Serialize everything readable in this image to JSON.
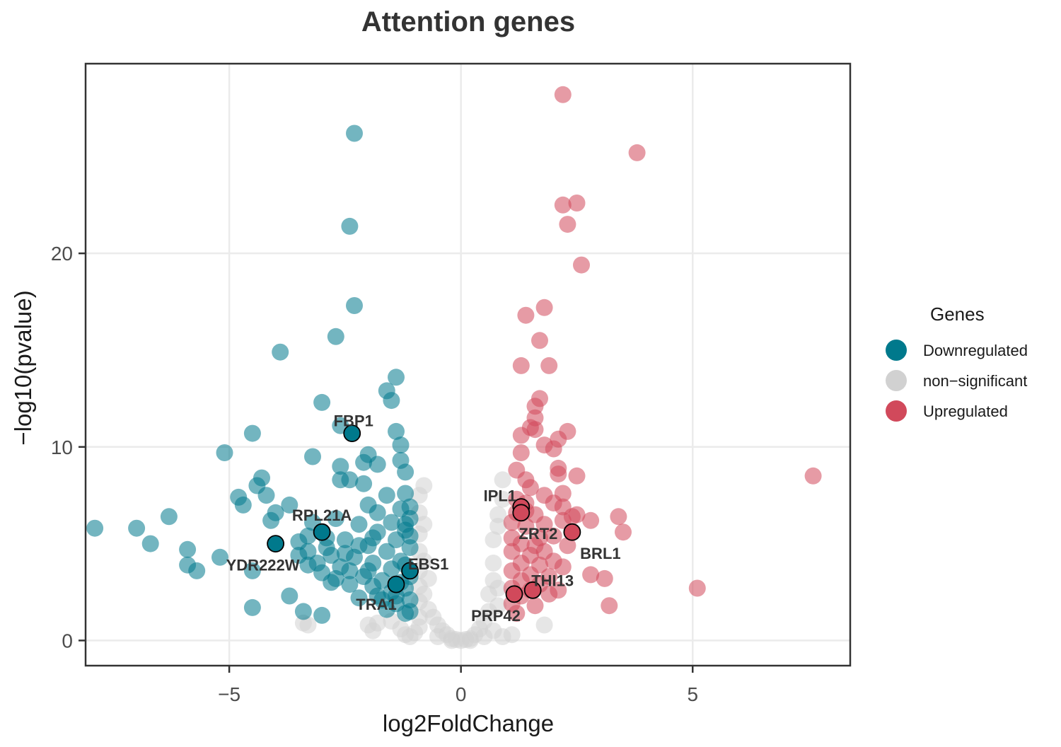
{
  "chart_data": {
    "type": "scatter",
    "title": "Attention genes",
    "xlabel": "log2FoldChange",
    "ylabel": "−log10(pvalue)",
    "xlim": [
      -8.1,
      8.4
    ],
    "ylim": [
      -1.3,
      29.8
    ],
    "xticks": [
      -5,
      0,
      5
    ],
    "xtick_labels": [
      "−5",
      "0",
      "5"
    ],
    "yticks": [
      0,
      10,
      20
    ],
    "ytick_labels": [
      "0",
      "10",
      "20"
    ],
    "grid": true,
    "legend": {
      "title": "Genes",
      "position": "right",
      "entries": [
        {
          "label": "Downregulated",
          "color": "#00798c"
        },
        {
          "label": "non−significant",
          "color": "#d1d1d1"
        },
        {
          "label": "Upregulated",
          "color": "#d1495b"
        }
      ]
    },
    "series": [
      {
        "name": "Downregulated",
        "color": "#00798c",
        "points": [
          [
            -7.9,
            5.8
          ],
          [
            -7.0,
            5.8
          ],
          [
            -6.7,
            5.0
          ],
          [
            -6.3,
            6.4
          ],
          [
            -5.9,
            4.7
          ],
          [
            -5.9,
            3.9
          ],
          [
            -5.7,
            3.6
          ],
          [
            -5.1,
            9.7
          ],
          [
            -5.2,
            4.3
          ],
          [
            -4.8,
            7.4
          ],
          [
            -4.7,
            7.0
          ],
          [
            -4.5,
            10.7
          ],
          [
            -4.5,
            3.6
          ],
          [
            -4.5,
            1.7
          ],
          [
            -4.4,
            8.0
          ],
          [
            -4.3,
            8.4
          ],
          [
            -4.2,
            7.5
          ],
          [
            -4.1,
            6.2
          ],
          [
            -4.0,
            6.6
          ],
          [
            -3.9,
            14.9
          ],
          [
            -3.7,
            7.0
          ],
          [
            -3.7,
            2.3
          ],
          [
            -3.5,
            5.1
          ],
          [
            -3.4,
            1.5
          ],
          [
            -3.3,
            3.9
          ],
          [
            -3.3,
            4.6
          ],
          [
            -3.2,
            9.5
          ],
          [
            -3.2,
            6.1
          ],
          [
            -3.0,
            12.3
          ],
          [
            -3.0,
            1.3
          ],
          [
            -2.9,
            5.3
          ],
          [
            -2.8,
            4.4
          ],
          [
            -2.7,
            15.7
          ],
          [
            -2.7,
            6.3
          ],
          [
            -2.6,
            11.1
          ],
          [
            -2.6,
            9.0
          ],
          [
            -2.6,
            8.3
          ],
          [
            -2.4,
            21.4
          ],
          [
            -2.4,
            8.3
          ],
          [
            -2.3,
            17.3
          ],
          [
            -2.3,
            26.2
          ],
          [
            -2.2,
            6.0
          ],
          [
            -2.1,
            9.2
          ],
          [
            -2.1,
            8.1
          ],
          [
            -2.0,
            9.6
          ],
          [
            -2.0,
            7.0
          ],
          [
            -1.9,
            4.0
          ],
          [
            -1.8,
            9.1
          ],
          [
            -1.8,
            6.6
          ],
          [
            -1.6,
            12.9
          ],
          [
            -1.5,
            12.4
          ],
          [
            -1.4,
            13.6
          ],
          [
            -1.4,
            10.8
          ],
          [
            -1.3,
            10.1
          ],
          [
            -1.3,
            9.3
          ],
          [
            -1.2,
            8.7
          ],
          [
            -2.5,
            5.2
          ],
          [
            -2.6,
            3.8
          ],
          [
            -2.4,
            2.9
          ],
          [
            -2.3,
            4.3
          ],
          [
            -2.2,
            2.2
          ],
          [
            -2.1,
            3.3
          ],
          [
            -2.0,
            4.9
          ],
          [
            -1.9,
            2.8
          ],
          [
            -1.8,
            5.6
          ],
          [
            -1.7,
            3.1
          ],
          [
            -1.7,
            2.1
          ],
          [
            -1.6,
            4.6
          ],
          [
            -1.6,
            1.6
          ],
          [
            -1.5,
            3.7
          ],
          [
            -1.5,
            2.5
          ],
          [
            -1.4,
            5.2
          ],
          [
            -1.4,
            1.9
          ],
          [
            -1.3,
            6.8
          ],
          [
            -1.3,
            4.1
          ],
          [
            -1.2,
            7.6
          ],
          [
            -1.2,
            2.7
          ],
          [
            -1.2,
            1.4
          ],
          [
            -1.1,
            6.3
          ],
          [
            -1.1,
            4.8
          ],
          [
            -1.1,
            3.3
          ],
          [
            -1.1,
            2.1
          ],
          [
            -1.1,
            1.5
          ],
          [
            -1.2,
            5.7
          ],
          [
            -1.3,
            3.0
          ],
          [
            -1.5,
            6.1
          ],
          [
            -1.6,
            7.5
          ],
          [
            -1.9,
            5.3
          ],
          [
            -2.0,
            3.6
          ],
          [
            -2.2,
            4.9
          ],
          [
            -2.4,
            3.6
          ],
          [
            -2.7,
            3.2
          ],
          [
            -2.8,
            3.0
          ],
          [
            -3.0,
            3.5
          ],
          [
            -3.1,
            4.0
          ],
          [
            -3.3,
            5.4
          ],
          [
            -3.5,
            4.4
          ],
          [
            -2.9,
            4.8
          ],
          [
            -2.5,
            4.5
          ],
          [
            -1.8,
            2.3
          ],
          [
            -1.4,
            2.3
          ],
          [
            -1.2,
            3.9
          ],
          [
            -1.1,
            5.4
          ],
          [
            -1.1,
            6.9
          ],
          [
            -1.2,
            6.0
          ]
        ]
      },
      {
        "name": "non−significant",
        "color": "#d1d1d1",
        "points": [
          [
            -3.4,
            0.9
          ],
          [
            -3.3,
            0.8
          ],
          [
            -2.0,
            0.8
          ],
          [
            -1.9,
            0.5
          ],
          [
            -1.8,
            0.9
          ],
          [
            -1.5,
            1.0
          ],
          [
            -1.3,
            0.6
          ],
          [
            -1.2,
            0.3
          ],
          [
            -1.1,
            0.2
          ],
          [
            -1.0,
            0.4
          ],
          [
            -0.9,
            0.7
          ],
          [
            -0.9,
            1.2
          ],
          [
            -0.9,
            2.0
          ],
          [
            -0.9,
            2.8
          ],
          [
            -0.9,
            3.6
          ],
          [
            -0.9,
            4.6
          ],
          [
            -0.9,
            5.5
          ],
          [
            -0.9,
            6.6
          ],
          [
            -0.9,
            7.5
          ],
          [
            -0.8,
            8.0
          ],
          [
            -0.8,
            6.0
          ],
          [
            -0.8,
            4.1
          ],
          [
            -0.8,
            2.4
          ],
          [
            -0.7,
            3.2
          ],
          [
            -0.7,
            1.6
          ],
          [
            -0.6,
            1.2
          ],
          [
            -0.5,
            0.8
          ],
          [
            -0.4,
            0.5
          ],
          [
            -0.3,
            0.3
          ],
          [
            -0.2,
            0.1
          ],
          [
            -0.1,
            0.05
          ],
          [
            0.0,
            0.0
          ],
          [
            0.1,
            0.05
          ],
          [
            0.2,
            0.1
          ],
          [
            0.3,
            0.3
          ],
          [
            0.4,
            0.6
          ],
          [
            0.5,
            1.0
          ],
          [
            0.6,
            1.5
          ],
          [
            0.6,
            2.4
          ],
          [
            0.7,
            3.1
          ],
          [
            0.7,
            4.0
          ],
          [
            0.7,
            5.2
          ],
          [
            0.8,
            5.9
          ],
          [
            0.8,
            6.5
          ],
          [
            0.9,
            7.3
          ],
          [
            0.9,
            8.3
          ],
          [
            0.8,
            2.7
          ],
          [
            0.8,
            1.8
          ],
          [
            0.7,
            0.5
          ],
          [
            0.9,
            0.2
          ],
          [
            1.1,
            0.3
          ],
          [
            1.8,
            0.8
          ],
          [
            0.2,
            0.0
          ],
          [
            -0.2,
            0.0
          ],
          [
            -0.5,
            0.2
          ],
          [
            0.5,
            0.2
          ]
        ]
      },
      {
        "name": "Upregulated",
        "color": "#d1495b",
        "points": [
          [
            2.2,
            28.2
          ],
          [
            3.8,
            25.2
          ],
          [
            2.2,
            22.5
          ],
          [
            2.5,
            22.6
          ],
          [
            2.3,
            21.5
          ],
          [
            2.6,
            19.4
          ],
          [
            1.8,
            17.2
          ],
          [
            1.4,
            16.8
          ],
          [
            1.7,
            15.5
          ],
          [
            1.3,
            14.2
          ],
          [
            1.9,
            14.2
          ],
          [
            1.7,
            12.5
          ],
          [
            1.6,
            12.1
          ],
          [
            1.6,
            11.5
          ],
          [
            1.5,
            11.0
          ],
          [
            1.6,
            10.9
          ],
          [
            1.3,
            10.6
          ],
          [
            2.3,
            10.8
          ],
          [
            2.1,
            10.4
          ],
          [
            1.8,
            10.1
          ],
          [
            2.0,
            9.9
          ],
          [
            1.3,
            9.7
          ],
          [
            2.1,
            8.9
          ],
          [
            2.1,
            8.6
          ],
          [
            2.5,
            8.5
          ],
          [
            1.2,
            8.8
          ],
          [
            1.4,
            8.3
          ],
          [
            1.5,
            7.9
          ],
          [
            1.2,
            7.3
          ],
          [
            1.4,
            7.1
          ],
          [
            1.8,
            7.5
          ],
          [
            2.2,
            7.6
          ],
          [
            2.0,
            7.1
          ],
          [
            2.2,
            6.9
          ],
          [
            2.5,
            6.5
          ],
          [
            2.8,
            6.2
          ],
          [
            3.4,
            6.4
          ],
          [
            3.5,
            5.6
          ],
          [
            7.6,
            8.5
          ],
          [
            5.1,
            2.7
          ],
          [
            3.1,
            3.2
          ],
          [
            2.8,
            3.4
          ],
          [
            3.2,
            1.8
          ],
          [
            1.1,
            6.1
          ],
          [
            1.1,
            5.3
          ],
          [
            1.1,
            4.6
          ],
          [
            1.1,
            3.6
          ],
          [
            1.1,
            2.7
          ],
          [
            1.1,
            1.9
          ],
          [
            1.2,
            1.4
          ],
          [
            1.3,
            2.3
          ],
          [
            1.3,
            3.1
          ],
          [
            1.3,
            4.0
          ],
          [
            1.3,
            5.0
          ],
          [
            1.4,
            5.9
          ],
          [
            1.5,
            4.4
          ],
          [
            1.5,
            3.4
          ],
          [
            1.5,
            2.6
          ],
          [
            1.6,
            1.8
          ],
          [
            1.6,
            4.9
          ],
          [
            1.7,
            3.9
          ],
          [
            1.7,
            2.9
          ],
          [
            1.8,
            4.6
          ],
          [
            1.8,
            6.0
          ],
          [
            1.9,
            3.3
          ],
          [
            1.9,
            2.4
          ],
          [
            2.0,
            5.4
          ],
          [
            2.0,
            4.1
          ],
          [
            2.1,
            2.6
          ],
          [
            2.2,
            3.8
          ],
          [
            2.2,
            6.2
          ],
          [
            2.3,
            4.9
          ],
          [
            2.4,
            6.4
          ],
          [
            1.2,
            6.6
          ],
          [
            1.4,
            6.7
          ],
          [
            1.6,
            6.5
          ],
          [
            1.7,
            5.3
          ]
        ]
      }
    ],
    "highlighted_genes": [
      {
        "label": "FBP1",
        "x": -2.35,
        "y": 10.7,
        "group": "Downregulated"
      },
      {
        "label": "RPL21A",
        "x": -3.0,
        "y": 5.6,
        "group": "Downregulated"
      },
      {
        "label": "YDR222W",
        "x": -4.0,
        "y": 5.0,
        "group": "Downregulated"
      },
      {
        "label": "EBS1",
        "x": -1.1,
        "y": 3.6,
        "group": "Downregulated"
      },
      {
        "label": "TRA1",
        "x": -1.4,
        "y": 2.9,
        "group": "Downregulated"
      },
      {
        "label": "IPL1",
        "x": 1.3,
        "y": 6.9,
        "group": "Upregulated"
      },
      {
        "label": "ZRT2",
        "x": 2.4,
        "y": 5.6,
        "group": "Upregulated"
      },
      {
        "label": "BRL1",
        "x": 2.4,
        "y": 5.6,
        "group": "Upregulated"
      },
      {
        "label": "THI13",
        "x": 1.55,
        "y": 2.6,
        "group": "Upregulated"
      },
      {
        "label": "PRP42",
        "x": 1.15,
        "y": 2.4,
        "group": "Upregulated"
      },
      {
        "label": "",
        "x": 1.3,
        "y": 6.6,
        "group": "Upregulated"
      }
    ]
  }
}
